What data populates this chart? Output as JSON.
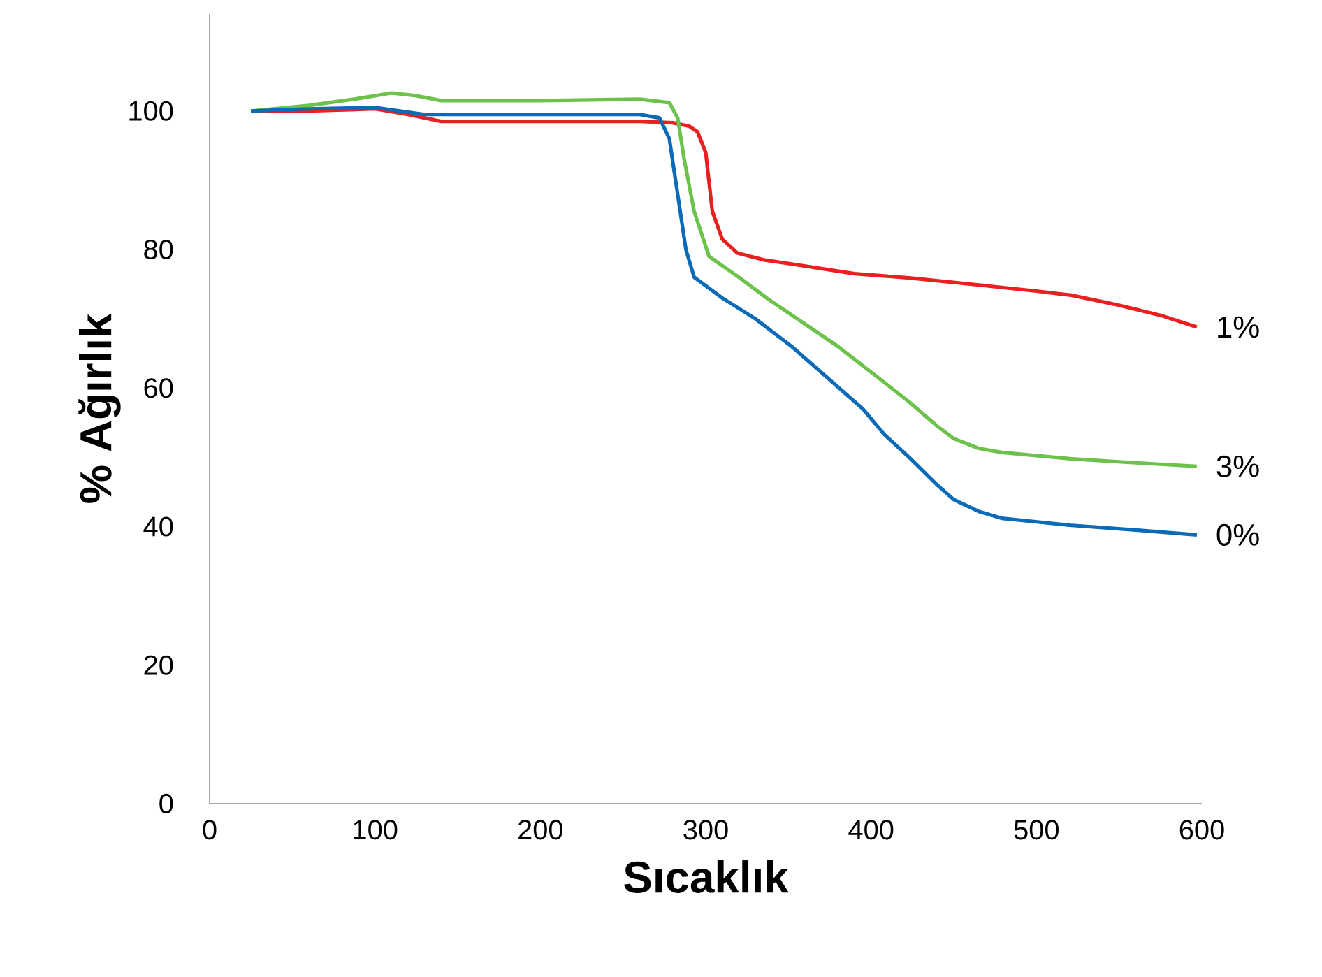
{
  "chart_data": {
    "type": "line",
    "xlabel": "Sıcaklık",
    "ylabel": "% Ağırlık",
    "xlim": [
      0,
      600
    ],
    "ylim": [
      0,
      114
    ],
    "xticks": [
      0,
      100,
      200,
      300,
      400,
      500,
      600
    ],
    "yticks": [
      0,
      20,
      40,
      60,
      80,
      100
    ],
    "grid": false,
    "legend": false,
    "marker": "none",
    "line_style": "solid",
    "series": [
      {
        "name": "1%",
        "color": "#e8201f",
        "x": [
          25,
          60,
          100,
          120,
          140,
          200,
          260,
          280,
          290,
          295,
          300,
          304,
          310,
          319,
          335,
          352,
          390,
          423,
          460,
          500,
          521,
          549,
          575,
          597
        ],
        "values": [
          100,
          100,
          100.3,
          99.5,
          98.5,
          98.5,
          98.5,
          98.3,
          97.8,
          97,
          94,
          85.5,
          81.5,
          79.5,
          78.5,
          77.9,
          76.5,
          75.9,
          75,
          74,
          73.4,
          72,
          70.5,
          68.8
        ]
      },
      {
        "name": "3%",
        "color": "#6cc24a",
        "x": [
          25,
          60,
          90,
          110,
          125,
          140,
          200,
          260,
          278,
          283,
          287,
          293,
          302,
          320,
          338,
          380,
          408,
          423,
          440,
          450,
          465,
          479,
          520,
          560,
          597
        ],
        "values": [
          100,
          100.8,
          101.8,
          102.6,
          102.2,
          101.5,
          101.5,
          101.7,
          101.2,
          99,
          93,
          85.5,
          79,
          76,
          72.8,
          66,
          60.8,
          58,
          54.5,
          52.7,
          51.3,
          50.7,
          49.8,
          49.2,
          48.7
        ]
      },
      {
        "name": "0%",
        "color": "#0b6bb8",
        "x": [
          25,
          60,
          100,
          115,
          130,
          200,
          260,
          272,
          278,
          283,
          288,
          293,
          310,
          330,
          352,
          395,
          408,
          423,
          440,
          450,
          465,
          479,
          520,
          560,
          597
        ],
        "values": [
          100,
          100.3,
          100.5,
          100,
          99.5,
          99.5,
          99.5,
          99,
          96,
          88,
          80,
          76,
          73,
          70,
          66,
          57,
          53.3,
          50,
          46,
          43.9,
          42.2,
          41.2,
          40.2,
          39.5,
          38.8
        ]
      }
    ]
  }
}
